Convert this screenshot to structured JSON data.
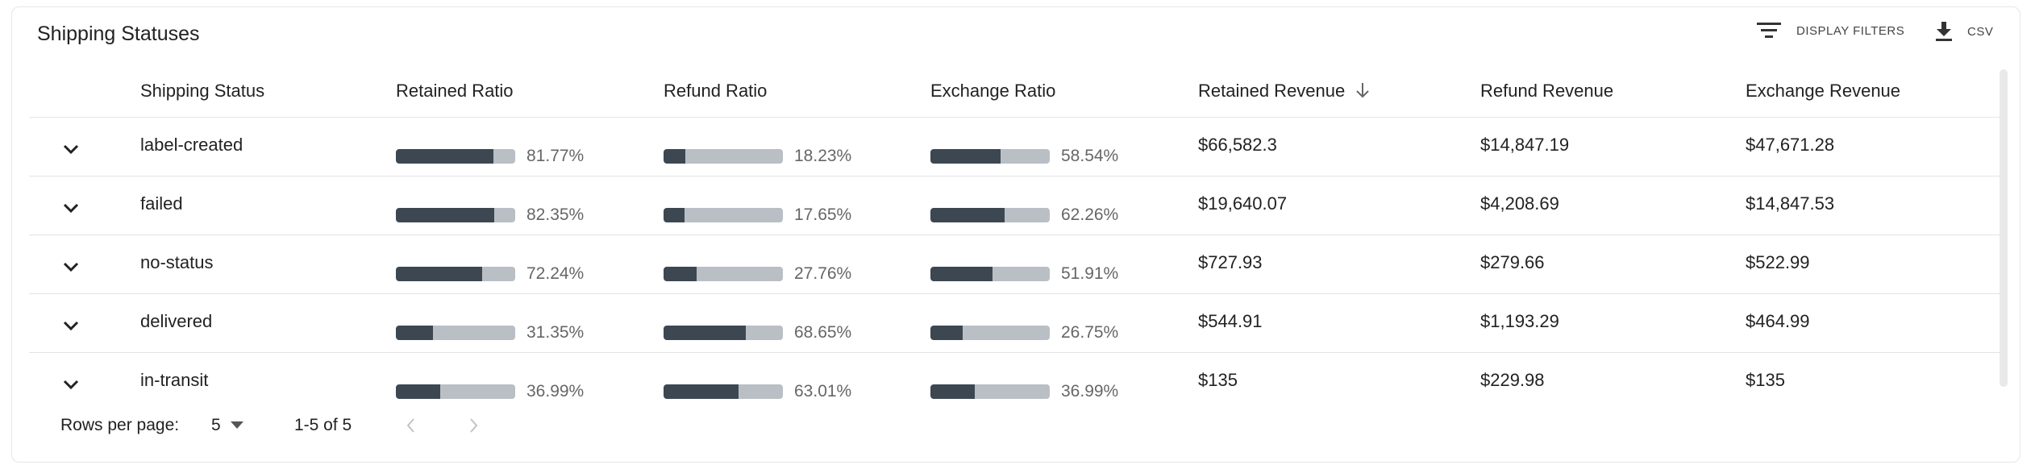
{
  "title": "Shipping Statuses",
  "toolbar": {
    "filters_label": "DISPLAY FILTERS",
    "filters_icon": "filter-icon",
    "csv_label": "CSV",
    "csv_icon": "download-icon"
  },
  "columns": {
    "status": "Shipping Status",
    "retained_ratio": "Retained Ratio",
    "refund_ratio": "Refund Ratio",
    "exchange_ratio": "Exchange Ratio",
    "retained_revenue": "Retained Revenue",
    "refund_revenue": "Refund Revenue",
    "exchange_revenue": "Exchange Revenue",
    "sort_icon": "arrow-down-icon"
  },
  "rows": [
    {
      "status": "label-created",
      "retained_ratio": "81.77%",
      "retained_value": 0.8177,
      "refund_ratio": "18.23%",
      "refund_value": 0.1823,
      "exchange_ratio": "58.54%",
      "exchange_value": 0.5854,
      "retained_revenue": "$66,582.3",
      "refund_revenue": "$14,847.19",
      "exchange_revenue": "$47,671.28"
    },
    {
      "status": "failed",
      "retained_ratio": "82.35%",
      "retained_value": 0.8235,
      "refund_ratio": "17.65%",
      "refund_value": 0.1765,
      "exchange_ratio": "62.26%",
      "exchange_value": 0.6226,
      "retained_revenue": "$19,640.07",
      "refund_revenue": "$4,208.69",
      "exchange_revenue": "$14,847.53"
    },
    {
      "status": "no-status",
      "retained_ratio": "72.24%",
      "retained_value": 0.7224,
      "refund_ratio": "27.76%",
      "refund_value": 0.2776,
      "exchange_ratio": "51.91%",
      "exchange_value": 0.5191,
      "retained_revenue": "$727.93",
      "refund_revenue": "$279.66",
      "exchange_revenue": "$522.99"
    },
    {
      "status": "delivered",
      "retained_ratio": "31.35%",
      "retained_value": 0.3135,
      "refund_ratio": "68.65%",
      "refund_value": 0.6865,
      "exchange_ratio": "26.75%",
      "exchange_value": 0.2675,
      "retained_revenue": "$544.91",
      "refund_revenue": "$1,193.29",
      "exchange_revenue": "$464.99"
    },
    {
      "status": "in-transit",
      "retained_ratio": "36.99%",
      "retained_value": 0.3699,
      "refund_ratio": "63.01%",
      "refund_value": 0.6301,
      "exchange_ratio": "36.99%",
      "exchange_value": 0.3699,
      "retained_revenue": "$135",
      "refund_revenue": "$229.98",
      "exchange_revenue": "$135"
    }
  ],
  "footer": {
    "rows_per_page_label": "Rows per page:",
    "rows_per_page_value": "5",
    "range": "1-5 of 5"
  },
  "colors": {
    "bar_fill": "#3c4752",
    "bar_track": "#b9bfc4"
  }
}
